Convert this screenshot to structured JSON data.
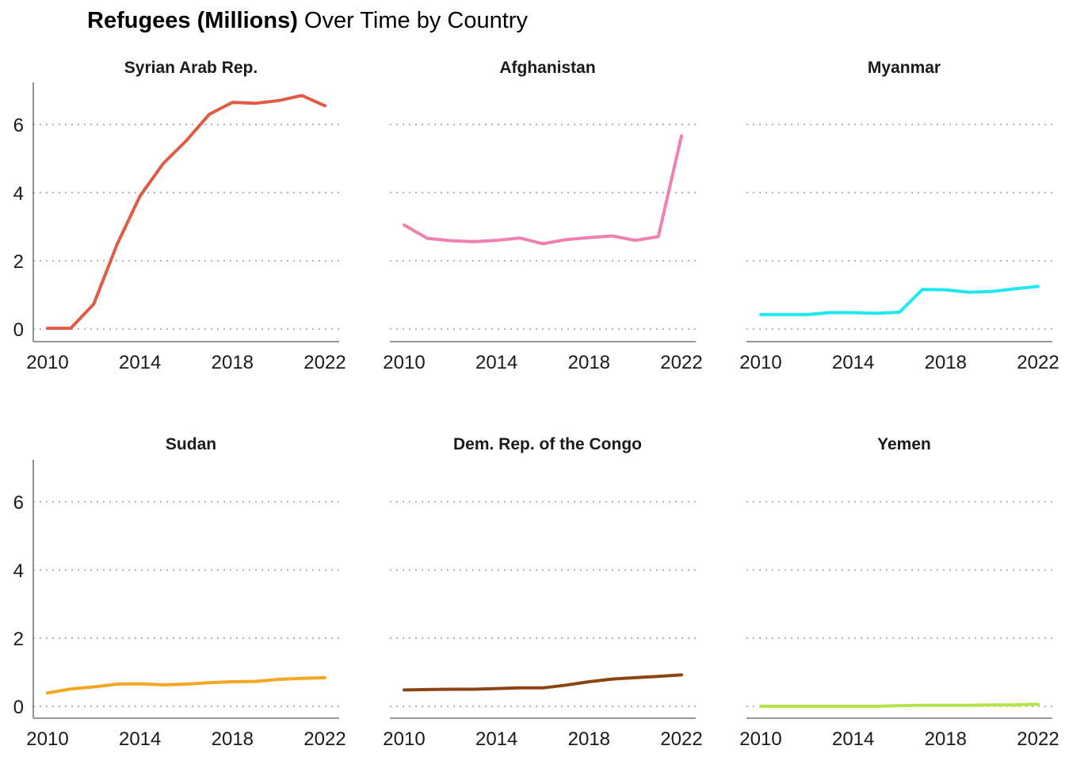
{
  "title": {
    "bold": "Refugees (Millions)",
    "rest": " Over Time by Country"
  },
  "chart_data": {
    "type": "line",
    "layout": "facet-grid-2x3",
    "title": "Refugees (Millions) Over Time by Country",
    "xlabel": "",
    "ylabel": "",
    "xlim": [
      2010,
      2022
    ],
    "ylim": [
      0,
      7
    ],
    "x_ticks": [
      2010,
      2014,
      2018,
      2022
    ],
    "y_ticks": [
      0,
      2,
      4,
      6
    ],
    "grid": "horizontal-dotted",
    "legend": "none",
    "x": [
      2010,
      2011,
      2012,
      2013,
      2014,
      2015,
      2016,
      2017,
      2018,
      2019,
      2020,
      2021,
      2022
    ],
    "series": [
      {
        "name": "Syrian Arab Rep.",
        "color": "#e05a44",
        "values": [
          0.02,
          0.02,
          0.73,
          2.47,
          3.9,
          4.85,
          5.52,
          6.3,
          6.65,
          6.62,
          6.7,
          6.85,
          6.55
        ]
      },
      {
        "name": "Afghanistan",
        "color": "#f080b0",
        "values": [
          3.05,
          2.66,
          2.59,
          2.56,
          2.6,
          2.67,
          2.5,
          2.62,
          2.68,
          2.73,
          2.6,
          2.71,
          5.66
        ]
      },
      {
        "name": "Myanmar",
        "color": "#1de8f0",
        "values": [
          0.42,
          0.42,
          0.42,
          0.48,
          0.48,
          0.46,
          0.49,
          1.16,
          1.15,
          1.08,
          1.1,
          1.18,
          1.25
        ]
      },
      {
        "name": "Sudan",
        "color": "#f5a623",
        "values": [
          0.39,
          0.51,
          0.57,
          0.65,
          0.66,
          0.63,
          0.65,
          0.69,
          0.72,
          0.73,
          0.79,
          0.82,
          0.84
        ]
      },
      {
        "name": "Dem. Rep. of the Congo",
        "color": "#8b4513",
        "values": [
          0.48,
          0.49,
          0.5,
          0.5,
          0.52,
          0.54,
          0.54,
          0.62,
          0.72,
          0.8,
          0.84,
          0.88,
          0.92
        ]
      },
      {
        "name": "Yemen",
        "color": "#b5e34a",
        "values": [
          0.0,
          0.0,
          0.0,
          0.0,
          0.0,
          0.0,
          0.02,
          0.03,
          0.03,
          0.03,
          0.04,
          0.04,
          0.06
        ]
      }
    ]
  }
}
